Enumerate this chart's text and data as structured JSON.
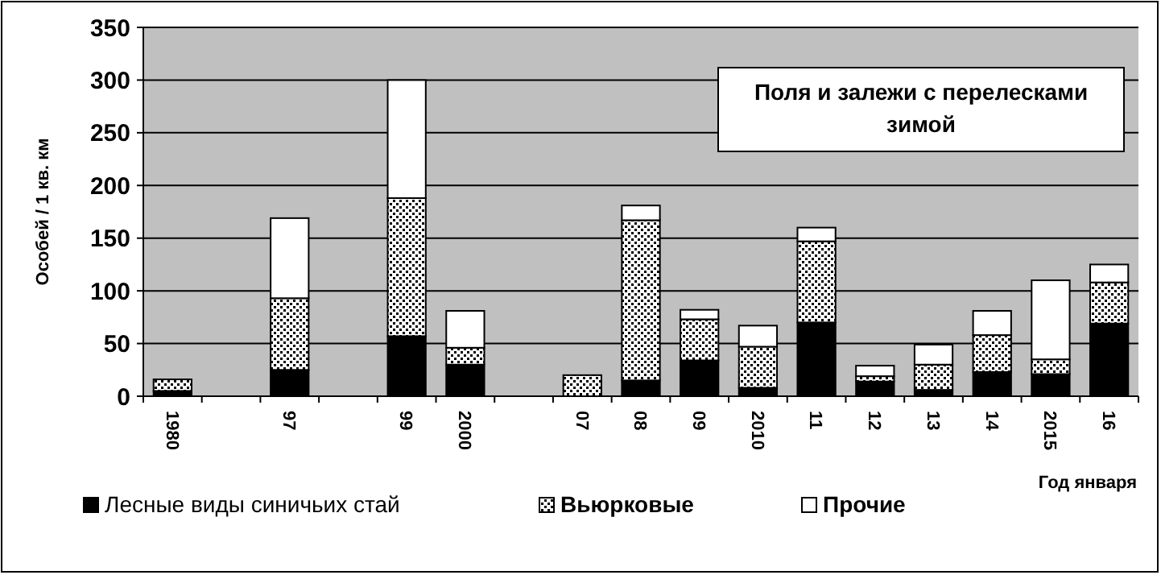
{
  "chart_data": {
    "type": "bar",
    "stacked": true,
    "title": "Поля и залежи с перелесками зимой",
    "ylabel": "Особей / 1 кв. км",
    "xlabel": "Год января",
    "categories": [
      "1980",
      null,
      "97",
      null,
      "99",
      "2000",
      null,
      "07",
      "08",
      "09",
      "2010",
      "11",
      "12",
      "13",
      "14",
      "2015",
      "16"
    ],
    "series": [
      {
        "name": "Лесные виды синичьих стай",
        "color": "#000000",
        "values": [
          5,
          null,
          25,
          null,
          57,
          30,
          null,
          0,
          15,
          34,
          8,
          70,
          14,
          6,
          23,
          21,
          69
        ]
      },
      {
        "name": "Вьюрковые",
        "color": "#000000",
        "values": [
          11,
          null,
          68,
          null,
          131,
          16,
          null,
          20,
          152,
          39,
          39,
          77,
          5,
          24,
          35,
          14,
          39
        ]
      },
      {
        "name": "Прочие",
        "color": "#ffffff",
        "values": [
          0,
          null,
          76,
          null,
          112,
          35,
          null,
          0,
          14,
          9,
          20,
          13,
          10,
          19,
          23,
          75,
          17
        ]
      }
    ],
    "ylim": [
      0,
      350
    ],
    "yticks": [
      0,
      50,
      100,
      150,
      200,
      250,
      300,
      350
    ],
    "grid": "y",
    "legend": "bottom"
  }
}
